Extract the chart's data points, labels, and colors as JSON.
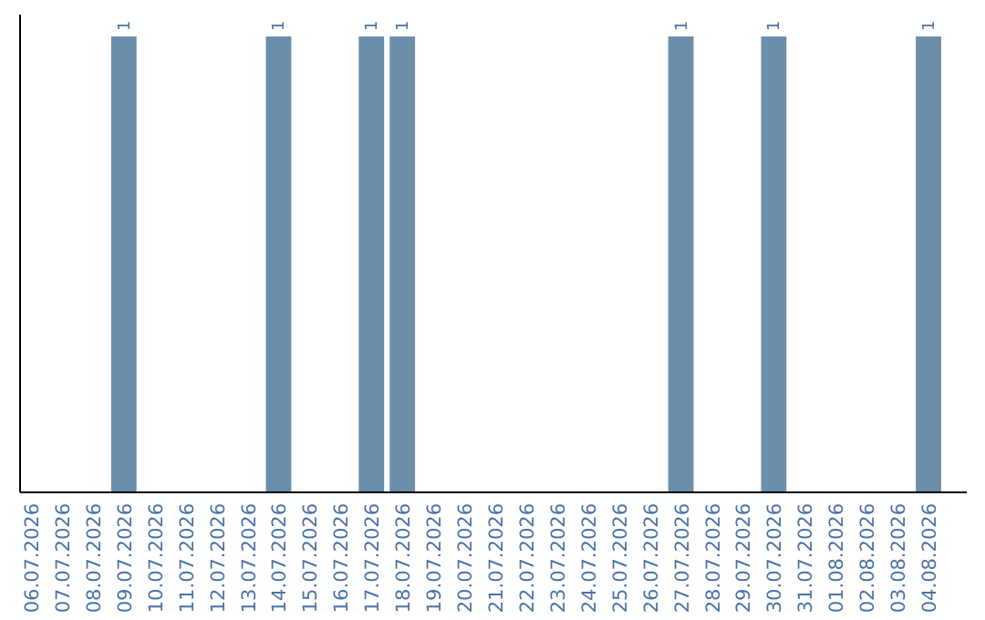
{
  "chart_data": {
    "type": "bar",
    "categories": [
      "06.07.2026",
      "07.07.2026",
      "08.07.2026",
      "09.07.2026",
      "10.07.2026",
      "11.07.2026",
      "12.07.2026",
      "13.07.2026",
      "14.07.2026",
      "15.07.2026",
      "16.07.2026",
      "17.07.2026",
      "18.07.2026",
      "19.07.2026",
      "20.07.2026",
      "21.07.2026",
      "22.07.2026",
      "23.07.2026",
      "24.07.2026",
      "25.07.2026",
      "26.07.2026",
      "27.07.2026",
      "28.07.2026",
      "29.07.2026",
      "30.07.2026",
      "31.07.2026",
      "01.08.2026",
      "02.08.2026",
      "03.08.2026",
      "04.08.2026"
    ],
    "values": [
      0,
      0,
      0,
      1,
      0,
      0,
      0,
      0,
      1,
      0,
      0,
      1,
      1,
      0,
      0,
      0,
      0,
      0,
      0,
      0,
      0,
      1,
      0,
      0,
      1,
      0,
      0,
      0,
      0,
      1
    ],
    "value_labels": [
      null,
      null,
      null,
      "1",
      null,
      null,
      null,
      null,
      "1",
      null,
      null,
      "1",
      "1",
      null,
      null,
      null,
      null,
      null,
      null,
      null,
      null,
      "1",
      null,
      null,
      "1",
      null,
      null,
      null,
      null,
      "1"
    ],
    "color": "#6b8eab"
  }
}
